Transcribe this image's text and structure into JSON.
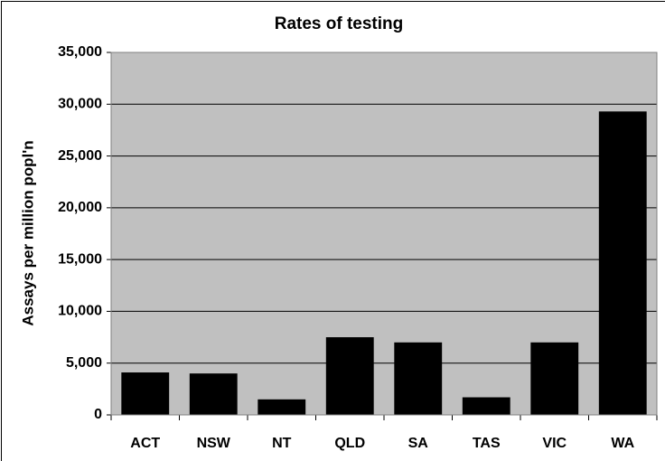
{
  "chart_data": {
    "type": "bar",
    "title": "Rates of testing",
    "y_label": "Assays per million popl'n",
    "categories": [
      "ACT",
      "NSW",
      "NT",
      "QLD",
      "SA",
      "TAS",
      "VIC",
      "WA"
    ],
    "values": [
      4100,
      4000,
      1500,
      7500,
      7000,
      1700,
      7000,
      29300
    ],
    "color": "#000000",
    "plot_background": "#c0c0c0",
    "ylim": [
      0,
      35000
    ],
    "yticks": [
      0,
      {
        "value": 5000,
        "label": "5,000"
      },
      {
        "value": 10000,
        "label": "10,000"
      },
      {
        "value": 15000,
        "label": "15,000"
      },
      {
        "value": 20000,
        "label": "20,000"
      },
      {
        "value": 25000,
        "label": "25,000"
      },
      {
        "value": 30000,
        "label": "30,000"
      },
      {
        "value": 35000,
        "label": "35,000"
      }
    ],
    "grid": true
  }
}
